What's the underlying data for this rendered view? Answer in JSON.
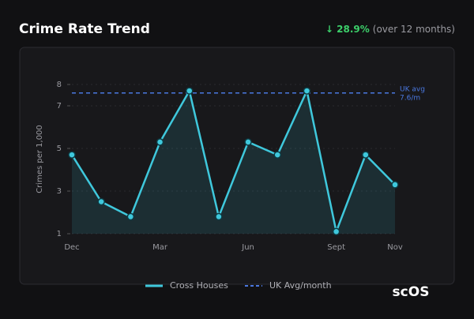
{
  "header": {
    "title": "Crime Rate Trend",
    "change": "↓ 28.9%",
    "change_note": "(over 12 months)"
  },
  "chart_data": {
    "type": "line",
    "y_label": "Crimes per 1,000",
    "categories": [
      "Dec",
      null,
      null,
      "Mar",
      null,
      null,
      "Jun",
      null,
      null,
      "Sept",
      null,
      "Nov"
    ],
    "series": [
      {
        "name": "Cross Houses",
        "color": "#3fc8dc",
        "values": [
          4.7,
          2.5,
          1.8,
          5.3,
          7.7,
          1.8,
          5.3,
          4.7,
          7.7,
          1.1,
          4.7,
          3.3
        ]
      }
    ],
    "reference": {
      "name": "UK Avg/month",
      "color": "#4a78e0",
      "value": 7.6,
      "label_lines": [
        "UK avg",
        "7.6/m"
      ]
    },
    "ylim": [
      1,
      8
    ],
    "yticks": [
      1,
      3,
      5,
      7,
      8
    ],
    "grid": true
  },
  "logo": "scOS"
}
